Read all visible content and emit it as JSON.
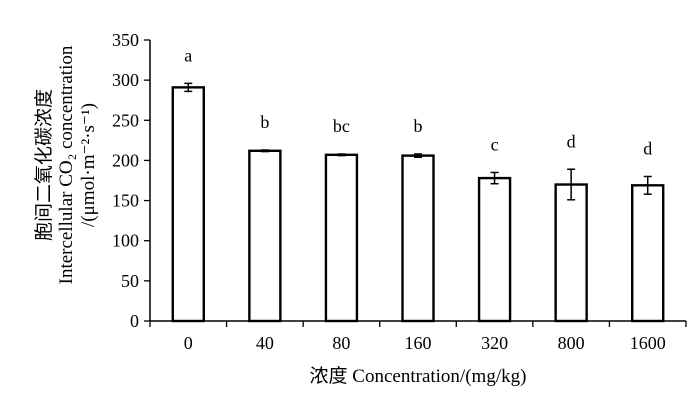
{
  "chart_data": {
    "type": "bar",
    "categories": [
      "0",
      "40",
      "80",
      "160",
      "320",
      "800",
      "1600"
    ],
    "values": [
      291,
      212,
      207,
      206,
      178,
      170,
      169
    ],
    "errors": [
      5,
      1,
      1,
      2,
      7,
      19,
      11
    ],
    "significance_letters": [
      "a",
      "b",
      "bc",
      "b",
      "c",
      "d",
      "d"
    ],
    "xlabel": "浓度 Concentration/(mg/kg)",
    "ylabel_lines": [
      "胞间二氧化碳浓度",
      "Intercellular CO₂ concentration",
      "/(μmol·m⁻²·s⁻¹)"
    ],
    "ylim": [
      0,
      350
    ],
    "yticks": [
      0,
      50,
      100,
      150,
      200,
      250,
      300,
      350
    ],
    "bar_color": "#ffffff",
    "edge_color": "#000000"
  }
}
